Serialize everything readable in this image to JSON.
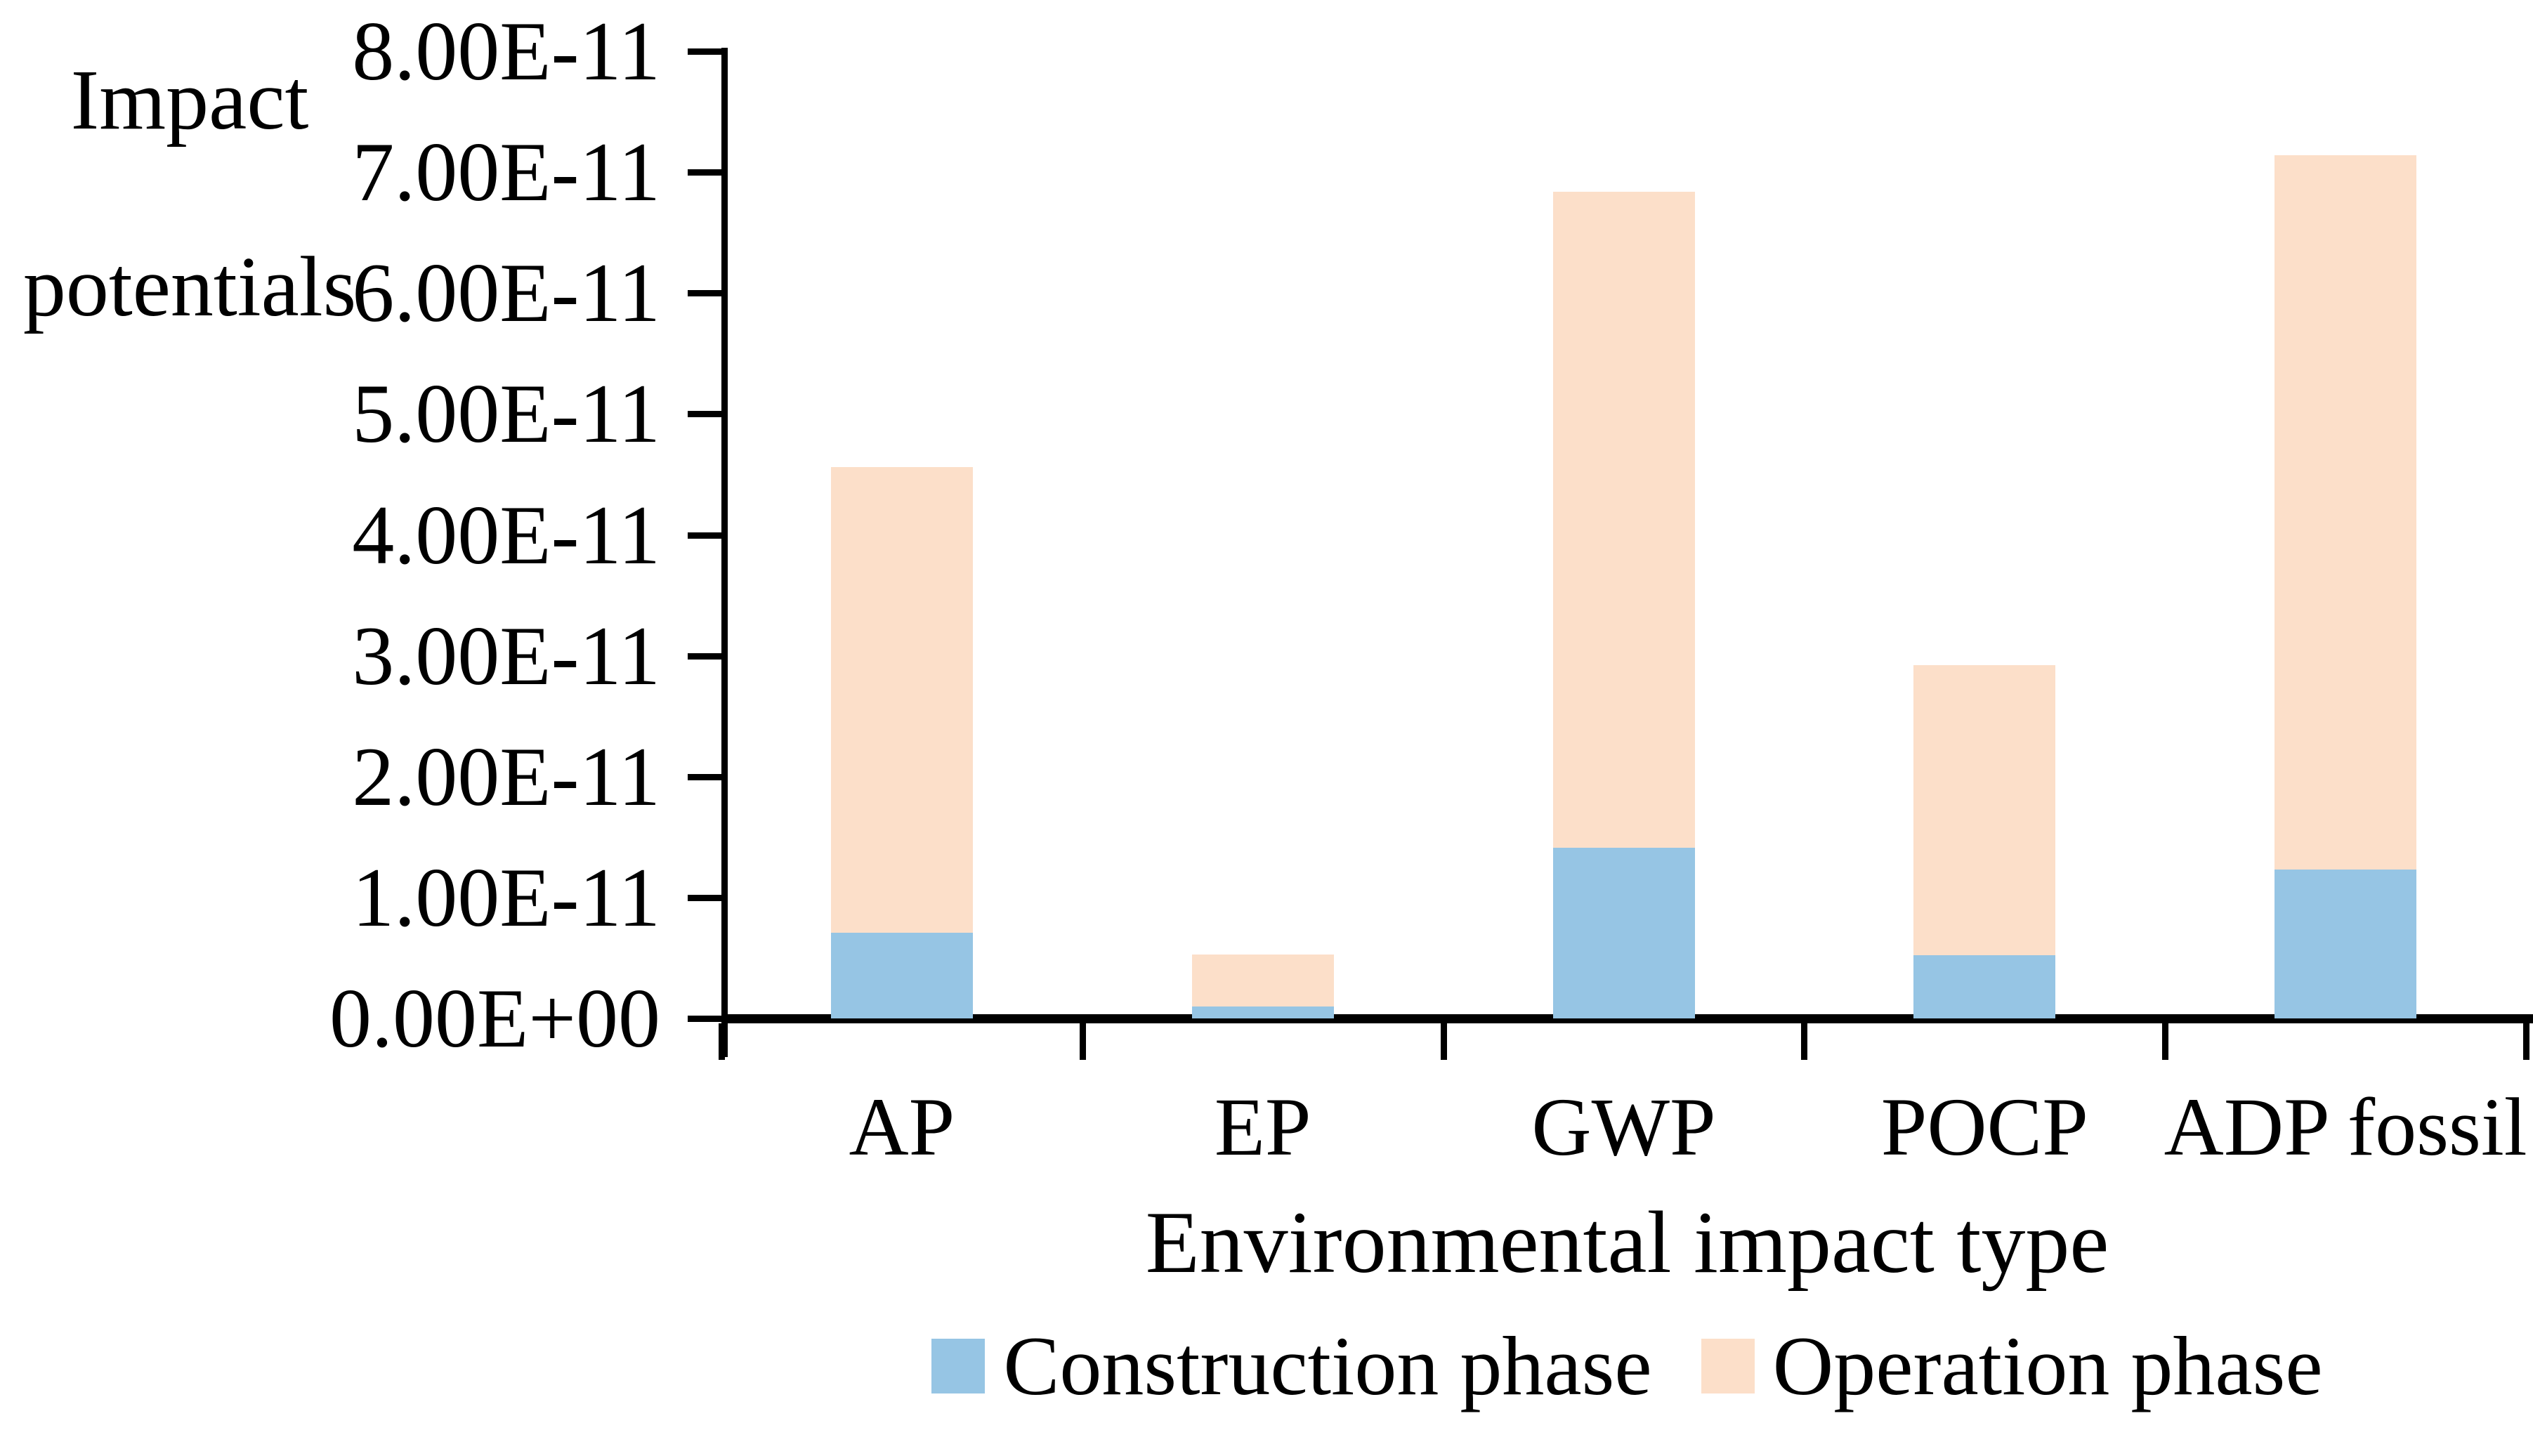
{
  "figure": {
    "y_axis_title": "Impact\npotentials"
  },
  "colors": {
    "construction": "#96C5E4",
    "operation": "#FCDFC9",
    "axis": "#000000",
    "text": "#000000"
  },
  "legend": {
    "items": [
      {
        "label": "Construction phase",
        "color_key": "construction"
      },
      {
        "label": "Operation phase",
        "color_key": "operation"
      }
    ]
  },
  "chart_data": {
    "type": "bar",
    "stacked": true,
    "title": "",
    "xlabel": "Environmental impact type",
    "ylabel": "Impact potentials",
    "categories": [
      "AP",
      "EP",
      "GWP",
      "POCP",
      "ADP fossil"
    ],
    "series": [
      {
        "name": "Construction phase",
        "values": [
          7.1e-12,
          1e-12,
          1.41e-11,
          5.2e-12,
          1.23e-11
        ]
      },
      {
        "name": "Operation phase",
        "values": [
          3.85e-11,
          4.3e-12,
          5.43e-11,
          2.4e-11,
          5.91e-11
        ]
      }
    ],
    "stack_totals": [
      4.56e-11,
      5.3e-12,
      6.84e-11,
      2.92e-11,
      7.14e-11
    ],
    "ylim": [
      0,
      8e-11
    ],
    "y_ticks": [
      "0.00E+00",
      "1.00E-11",
      "2.00E-11",
      "3.00E-11",
      "4.00E-11",
      "5.00E-11",
      "6.00E-11",
      "7.00E-11",
      "8.00E-11"
    ],
    "grid": false,
    "legend_position": "bottom"
  }
}
